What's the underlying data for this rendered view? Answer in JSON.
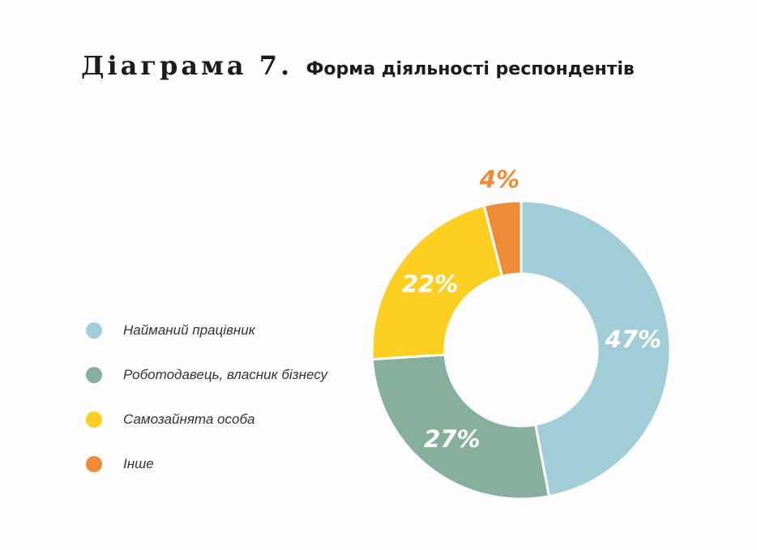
{
  "title": {
    "main": "Діаграма 7.",
    "sub": "Форма діяльності респондентів"
  },
  "chart_data": {
    "type": "pie",
    "variant": "donut",
    "title": "Форма діяльності респондентів",
    "legend_position": "left",
    "slices": [
      {
        "label": "Найманий працівник",
        "value": 47,
        "display": "47%",
        "color": "#a1cdd8",
        "label_color": "#ffffff"
      },
      {
        "label": "Роботодавець, власник бізнесу",
        "value": 27,
        "display": "27%",
        "color": "#86b09c",
        "label_color": "#ffffff"
      },
      {
        "label": "Самозайнята особа",
        "value": 22,
        "display": "22%",
        "color": "#fccf22",
        "label_color": "#ffffff"
      },
      {
        "label": "Інше",
        "value": 4,
        "display": "4%",
        "color": "#ee8b36",
        "label_color": "#ee8b36"
      }
    ]
  }
}
